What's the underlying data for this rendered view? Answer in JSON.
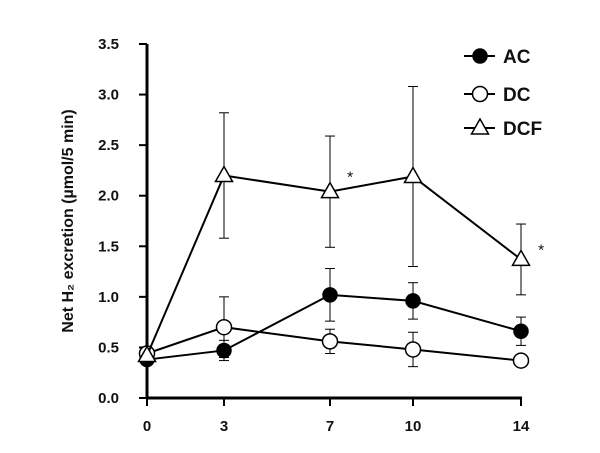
{
  "chart_data": {
    "type": "line",
    "title": "",
    "ylabel": "Net H₂ excretion (µmol/5 min)",
    "xlabel": "",
    "x": [
      0,
      3,
      7,
      10,
      14
    ],
    "x_tick_labels": [
      "0",
      "3",
      "7",
      "10",
      "14"
    ],
    "ylim": [
      0,
      3.5
    ],
    "y_ticks": [
      0.0,
      0.5,
      1.0,
      1.5,
      2.0,
      2.5,
      3.0,
      3.5
    ],
    "y_tick_labels": [
      "0.0",
      "0.5",
      "1.0",
      "1.5",
      "2.0",
      "2.5",
      "3.0",
      "3.5"
    ],
    "legend_position": "top-right",
    "grid": false,
    "series": [
      {
        "name": "AC",
        "marker": "filled-circle",
        "color": "#000000",
        "values": [
          0.38,
          0.47,
          1.02,
          0.96,
          0.66
        ],
        "error": [
          0.0,
          0.1,
          0.26,
          0.18,
          0.14
        ]
      },
      {
        "name": "DC",
        "marker": "open-circle",
        "color": "#000000",
        "values": [
          0.44,
          0.7,
          0.56,
          0.48,
          0.37
        ],
        "error": [
          0.0,
          0.3,
          0.12,
          0.17,
          0.0
        ]
      },
      {
        "name": "DCF",
        "marker": "open-triangle",
        "color": "#000000",
        "values": [
          0.42,
          2.2,
          2.04,
          2.19,
          1.37
        ],
        "error": [
          0.0,
          0.62,
          0.55,
          0.89,
          0.35
        ]
      }
    ],
    "annotations": [
      {
        "text": "*",
        "series": "DCF",
        "x": 7
      },
      {
        "text": "*",
        "series": "DCF",
        "x": 14
      }
    ]
  }
}
